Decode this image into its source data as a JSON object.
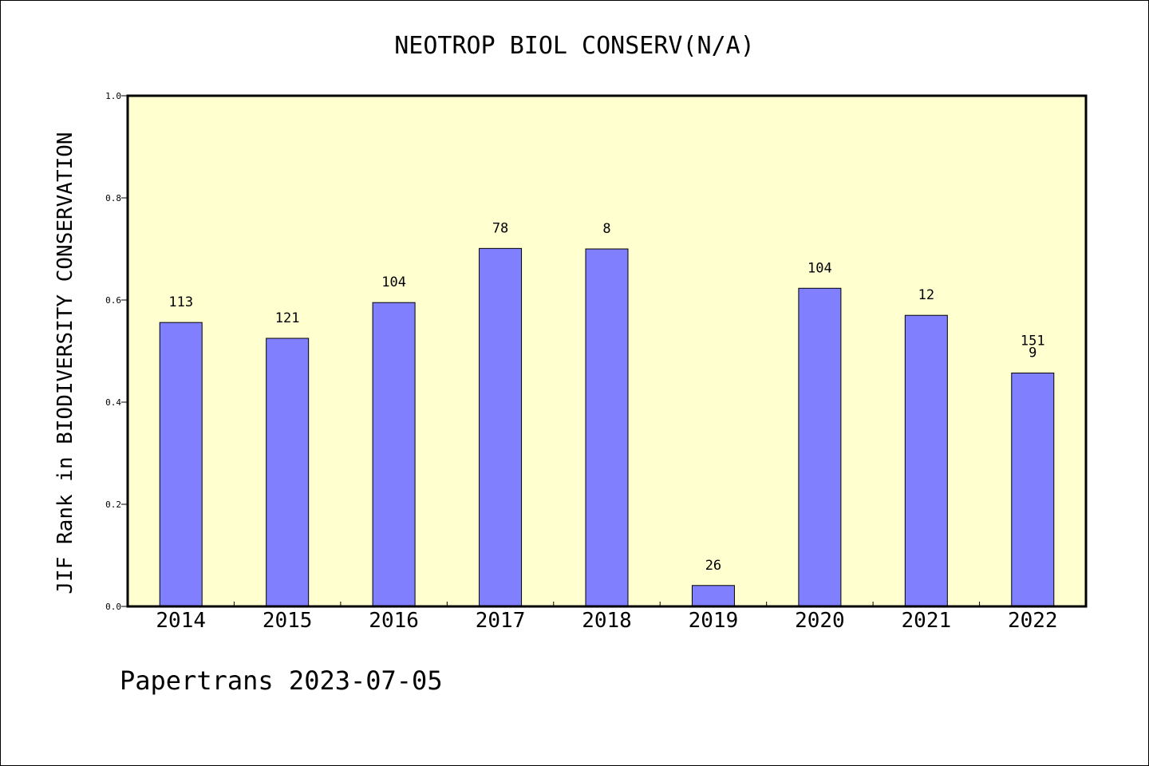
{
  "chart_data": {
    "type": "bar",
    "title": "NEOTROP BIOL CONSERV(N/A)",
    "xlabel": "",
    "ylabel": "JIF Rank in BIODIVERSITY CONSERVATION",
    "categories": [
      "2014",
      "2015",
      "2016",
      "2017",
      "2018",
      "2019",
      "2020",
      "2021",
      "2022"
    ],
    "values": [
      0.556,
      0.525,
      0.595,
      0.701,
      0.7,
      0.041,
      0.623,
      0.57,
      0.457
    ],
    "data_labels": [
      [
        "113"
      ],
      [
        "121"
      ],
      [
        "104"
      ],
      [
        "78"
      ],
      [
        "8"
      ],
      [
        "26"
      ],
      [
        "104"
      ],
      [
        "12"
      ],
      [
        "151",
        "9"
      ]
    ],
    "ylim": [
      0,
      1.0
    ],
    "yticks": [
      "0.0",
      "0.2",
      "0.4",
      "0.6",
      "0.8",
      "1.0"
    ],
    "grid": false,
    "colors": {
      "plot_background": "#ffffd0",
      "bar_fill": "#8080ff",
      "bar_stroke": "#000000"
    }
  },
  "footer": "Papertrans 2023-07-05"
}
